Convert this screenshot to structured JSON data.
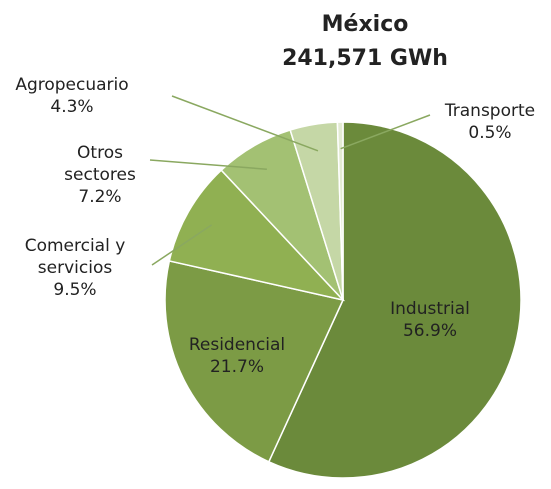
{
  "chart_data": {
    "type": "pie",
    "title": "México",
    "subtitle": "241,571 GWh",
    "categories": [
      "Industrial",
      "Residencial",
      "Comercial y servicios",
      "Otros sectores",
      "Agropecuario",
      "Transporte"
    ],
    "values": [
      56.9,
      21.7,
      9.5,
      7.2,
      4.3,
      0.5
    ],
    "value_labels": [
      "56.9%",
      "21.7%",
      "9.5%",
      "7.2%",
      "4.3%",
      "0.5%"
    ],
    "colors": [
      "#6b8a3b",
      "#7c9b45",
      "#90b052",
      "#a3c173",
      "#c5d7a6",
      "#e3ebd3"
    ]
  }
}
